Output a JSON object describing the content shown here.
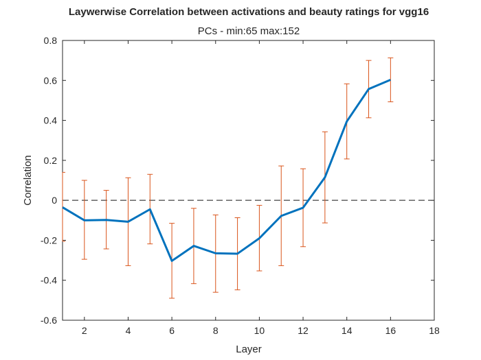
{
  "chart_data": {
    "type": "line",
    "title": "Laywerwise Correlation between activations and beauty ratings for vgg16",
    "subtitle": "PCs - min:65 max:152",
    "xlabel": "Layer",
    "ylabel": "Correlation",
    "xlim": [
      1,
      18
    ],
    "ylim": [
      -0.6,
      0.8
    ],
    "xticks": [
      2,
      4,
      6,
      8,
      10,
      12,
      14,
      16,
      18
    ],
    "yticks": [
      -0.6,
      -0.4,
      -0.2,
      0,
      0.2,
      0.4,
      0.6,
      0.8
    ],
    "ytick_labels": [
      "-0.6",
      "-0.4",
      "-0.2",
      "0",
      "0.2",
      "0.4",
      "0.6",
      "0.8"
    ],
    "reference_line": {
      "y": 0,
      "style": "dashed",
      "color": "#404040"
    },
    "grid": false,
    "series": [
      {
        "color": "#0072BD",
        "error_color": "#D95319",
        "x": [
          1,
          2,
          3,
          4,
          5,
          6,
          7,
          8,
          9,
          10,
          11,
          12,
          13,
          14,
          15,
          16
        ],
        "y": [
          -0.035,
          -0.1,
          -0.098,
          -0.107,
          -0.045,
          -0.303,
          -0.228,
          -0.265,
          -0.267,
          -0.19,
          -0.078,
          -0.037,
          0.115,
          0.395,
          0.557,
          0.603
        ],
        "err_low": [
          -0.205,
          -0.295,
          -0.243,
          -0.327,
          -0.218,
          -0.49,
          -0.417,
          -0.46,
          -0.448,
          -0.353,
          -0.327,
          -0.232,
          -0.113,
          0.207,
          0.413,
          0.493
        ],
        "err_high": [
          0.14,
          0.1,
          0.05,
          0.113,
          0.13,
          -0.115,
          -0.04,
          -0.073,
          -0.087,
          -0.025,
          0.172,
          0.158,
          0.343,
          0.583,
          0.7,
          0.713
        ]
      }
    ]
  }
}
